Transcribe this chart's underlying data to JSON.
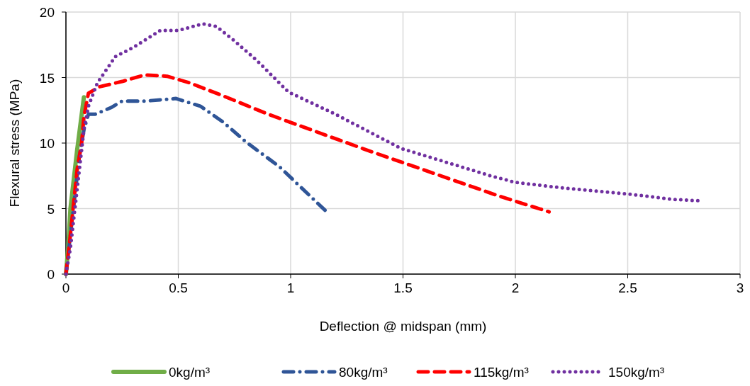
{
  "chart_data": {
    "type": "line",
    "xlabel": "Deflection @ midspan (mm)",
    "ylabel": "Flexural stress (MPa)",
    "xlim": [
      0,
      3
    ],
    "ylim": [
      0,
      20
    ],
    "xticks": [
      0,
      0.5,
      1,
      1.5,
      2,
      2.5,
      3
    ],
    "yticks": [
      0,
      5,
      10,
      15,
      20
    ],
    "grid": true,
    "legend": "bottom",
    "marker": "none",
    "series": [
      {
        "name": "0kg/m³",
        "color": "#70ad47",
        "line_style": "solid",
        "x": [
          0,
          0.01,
          0.02,
          0.05,
          0.08
        ],
        "values": [
          0,
          2,
          5,
          9.5,
          13.5
        ]
      },
      {
        "name": "80kg/m³",
        "color": "#2f5597",
        "line_style": "dashdot",
        "x": [
          0,
          0.02,
          0.04,
          0.06,
          0.08,
          0.1,
          0.13,
          0.2,
          0.25,
          0.35,
          0.49,
          0.6,
          0.7,
          0.8,
          0.95,
          1.09,
          1.17
        ],
        "values": [
          0,
          3,
          6,
          9,
          11,
          12.2,
          12.2,
          12.7,
          13.2,
          13.2,
          13.4,
          12.8,
          11.6,
          10.1,
          8.2,
          5.9,
          4.6
        ]
      },
      {
        "name": "115kg/m³",
        "color": "#ff0000",
        "line_style": "dashed",
        "x": [
          0,
          0.02,
          0.05,
          0.07,
          0.08,
          0.1,
          0.15,
          0.25,
          0.35,
          0.45,
          0.55,
          0.7,
          0.9,
          1.35,
          1.92,
          2.15
        ],
        "values": [
          0,
          3,
          8,
          10,
          12,
          13.8,
          14.3,
          14.7,
          15.2,
          15.1,
          14.6,
          13.6,
          12.2,
          9.4,
          6.0,
          4.75
        ]
      },
      {
        "name": "150kg/m³",
        "color": "#7030a0",
        "line_style": "dotted",
        "x": [
          0,
          0.02,
          0.04,
          0.06,
          0.08,
          0.1,
          0.14,
          0.22,
          0.3,
          0.42,
          0.5,
          0.61,
          0.67,
          0.75,
          0.85,
          0.99,
          1.2,
          1.49,
          1.89,
          2.0,
          2.2,
          2.51,
          2.7,
          2.82
        ],
        "values": [
          0,
          2,
          5,
          8,
          11,
          12.8,
          14.6,
          16.6,
          17.3,
          18.6,
          18.6,
          19.1,
          18.9,
          17.8,
          16.3,
          13.9,
          12.2,
          9.6,
          7.5,
          7.0,
          6.6,
          6.1,
          5.7,
          5.6
        ]
      }
    ]
  }
}
